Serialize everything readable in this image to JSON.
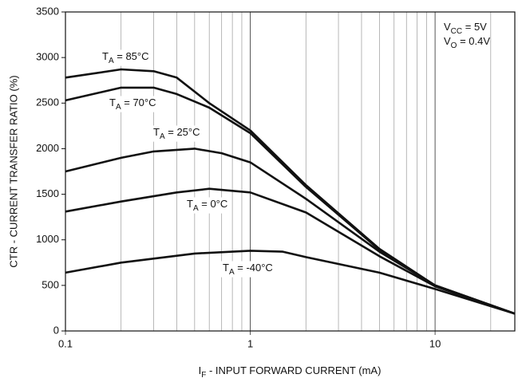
{
  "chart_data": {
    "type": "line",
    "xscale": "log",
    "xlabel": {
      "base": "I",
      "sub": "F",
      "tail": " - INPUT FORWARD CURRENT (mA)"
    },
    "ylabel": "CTR - CURRENT TRANSFER RATIO (%)",
    "conditions": [
      {
        "base": "V",
        "sub": "CC",
        "tail": " = 5V"
      },
      {
        "base": "V",
        "sub": "O",
        "tail": " = 0.4V"
      }
    ],
    "xlim": [
      0.1,
      27
    ],
    "ylim": [
      0,
      3500
    ],
    "xticks": [
      0.1,
      1,
      10
    ],
    "xgrid": [
      0.2,
      0.3,
      0.4,
      0.5,
      0.6,
      0.7,
      0.8,
      0.9,
      2,
      3,
      4,
      5,
      6,
      7,
      8,
      9,
      20
    ],
    "yticks": [
      0,
      500,
      1000,
      1500,
      2000,
      2500,
      3000,
      3500
    ],
    "color": "#111111",
    "series": [
      {
        "label": {
          "base": "T",
          "sub": "A",
          "tail": " = 85°C"
        },
        "x": [
          0.1,
          0.2,
          0.3,
          0.4,
          0.6,
          1,
          2,
          5,
          10,
          27
        ],
        "values": [
          2780,
          2870,
          2850,
          2780,
          2500,
          2200,
          1600,
          900,
          500,
          190
        ]
      },
      {
        "label": {
          "base": "T",
          "sub": "A",
          "tail": " = 70°C"
        },
        "x": [
          0.1,
          0.2,
          0.3,
          0.4,
          0.6,
          1,
          2,
          5,
          10,
          27
        ],
        "values": [
          2530,
          2670,
          2670,
          2600,
          2450,
          2170,
          1580,
          890,
          500,
          190
        ]
      },
      {
        "label": {
          "base": "T",
          "sub": "A",
          "tail": " = 25°C"
        },
        "x": [
          0.1,
          0.2,
          0.3,
          0.5,
          0.7,
          1,
          2,
          5,
          10,
          27
        ],
        "values": [
          1750,
          1900,
          1970,
          2000,
          1950,
          1850,
          1450,
          870,
          500,
          190
        ]
      },
      {
        "label": {
          "base": "T",
          "sub": "A",
          "tail": " = 0°C"
        },
        "x": [
          0.1,
          0.2,
          0.4,
          0.6,
          1,
          2,
          5,
          10,
          27
        ],
        "values": [
          1310,
          1420,
          1520,
          1560,
          1520,
          1300,
          820,
          490,
          190
        ]
      },
      {
        "label": {
          "base": "T",
          "sub": "A",
          "tail": " = -40°C"
        },
        "x": [
          0.1,
          0.2,
          0.5,
          1,
          1.5,
          2,
          5,
          10,
          27
        ],
        "values": [
          640,
          750,
          850,
          880,
          870,
          810,
          640,
          460,
          190
        ]
      }
    ]
  }
}
